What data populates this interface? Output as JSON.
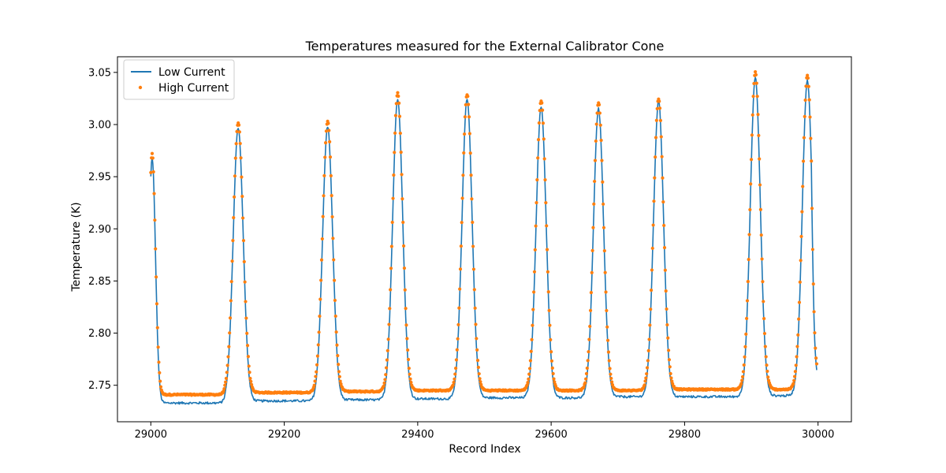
{
  "chart_data": {
    "type": "line",
    "title": "Temperatures measured for the External Calibrator Cone",
    "xlabel": "Record Index",
    "ylabel": "Temperature (K)",
    "xlim": [
      28950,
      30050
    ],
    "ylim": [
      2.715,
      3.065
    ],
    "xticks": [
      29000,
      29200,
      29400,
      29600,
      29800,
      30000
    ],
    "yticks": [
      2.75,
      2.8,
      2.85,
      2.9,
      2.95,
      3.0,
      3.05
    ],
    "ytick_labels": [
      "2.75",
      "2.80",
      "2.85",
      "2.90",
      "2.95",
      "3.00",
      "3.05"
    ],
    "legend_position": "upper-left",
    "x_start": 29000,
    "x_end": 30000,
    "segments": [
      {
        "x0": 29000,
        "x1": 29110,
        "low": 2.733,
        "high": 2.741
      },
      {
        "x0": 29150,
        "x1": 29245,
        "low": 2.735,
        "high": 2.743
      },
      {
        "x0": 29285,
        "x1": 29350,
        "low": 2.736,
        "high": 2.744
      },
      {
        "x0": 29385,
        "x1": 29455,
        "low": 2.737,
        "high": 2.745
      },
      {
        "x0": 29490,
        "x1": 29570,
        "low": 2.738,
        "high": 2.745
      },
      {
        "x0": 29595,
        "x1": 29660,
        "low": 2.738,
        "high": 2.745
      },
      {
        "x0": 29680,
        "x1": 29740,
        "low": 2.739,
        "high": 2.745
      },
      {
        "x0": 29775,
        "x1": 29885,
        "low": 2.739,
        "high": 2.746
      },
      {
        "x0": 29925,
        "x1": 29975,
        "low": 2.74,
        "high": 2.746
      }
    ],
    "peaks": [
      {
        "x": 29002,
        "low": 2.968,
        "high": 2.972
      },
      {
        "x": 29131,
        "low": 2.997,
        "high": 3.002
      },
      {
        "x": 29265,
        "low": 2.998,
        "high": 3.003
      },
      {
        "x": 29370,
        "low": 3.025,
        "high": 3.03
      },
      {
        "x": 29474,
        "low": 3.025,
        "high": 3.029
      },
      {
        "x": 29585,
        "low": 3.017,
        "high": 3.023
      },
      {
        "x": 29671,
        "low": 3.015,
        "high": 3.021
      },
      {
        "x": 29761,
        "low": 3.022,
        "high": 3.025
      },
      {
        "x": 29906,
        "low": 3.045,
        "high": 3.05
      },
      {
        "x": 29984,
        "low": 3.042,
        "high": 3.047
      }
    ],
    "end_value": {
      "x": 29998,
      "low": 2.765,
      "high": 2.771
    },
    "series": [
      {
        "name": "Low Current",
        "style": "line",
        "color": "#1f77b4"
      },
      {
        "name": "High Current",
        "style": "scatter",
        "color": "#ff7f0e"
      }
    ]
  }
}
